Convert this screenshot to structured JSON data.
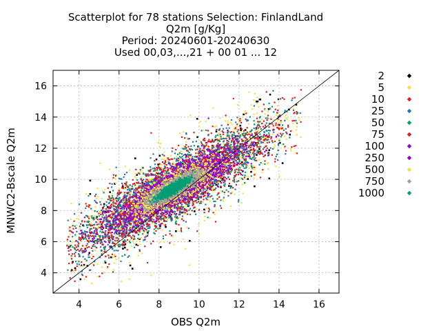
{
  "chart_data": {
    "type": "scatter",
    "title_lines": [
      "Scatterplot for   78 stations Selection: FinlandLand",
      "Q2m [g/Kg]",
      "Period: 20240601-20240630",
      "Used 00,03,...,21 + 00 01 ... 12"
    ],
    "xlabel": "OBS Q2m",
    "ylabel": "MNWC2-Bscale Q2m",
    "xlim": [
      2.7,
      17.0
    ],
    "ylim": [
      2.7,
      17.0
    ],
    "xticks": [
      4,
      6,
      8,
      10,
      12,
      14,
      16
    ],
    "yticks": [
      4,
      6,
      8,
      10,
      12,
      14,
      16
    ],
    "grid": true,
    "diagonal_line": true,
    "legend_position": "right",
    "density_bins": [
      {
        "label": "2",
        "color": "#000000",
        "spread": 1.6
      },
      {
        "label": "5",
        "color": "#f0e442",
        "spread": 1.45
      },
      {
        "label": "10",
        "color": "#e41a1c",
        "spread": 1.3
      },
      {
        "label": "25",
        "color": "#1f78b4",
        "spread": 1.15
      },
      {
        "label": "50",
        "color": "#009e73",
        "spread": 1.0
      },
      {
        "label": "75",
        "color": "#e41a1c",
        "spread": 0.88
      },
      {
        "label": "100",
        "color": "#9400d3",
        "spread": 0.76
      },
      {
        "label": "250",
        "color": "#9400d3",
        "spread": 0.62
      },
      {
        "label": "500",
        "color": "#f0e442",
        "spread": 0.46
      },
      {
        "label": "750",
        "color": "#a0a0a0",
        "spread": 0.3
      },
      {
        "label": "1000",
        "color": "#009e73",
        "spread": 0.16
      }
    ]
  }
}
